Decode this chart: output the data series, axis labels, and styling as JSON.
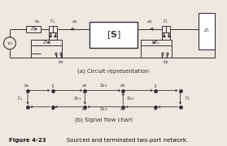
{
  "fig_width": 2.79,
  "fig_height": 1.8,
  "dpi": 100,
  "bg_color": "#ede8e0",
  "line_color": "#333333",
  "caption_regular": "   Sourced and terminated two-port network.",
  "caption_bold": "Figure 4-23",
  "sub_a_label": "(a) Circuit representation",
  "sub_b_label": "(b) Signal flow chart",
  "fs_tiny": 4.5,
  "fs_small": 5.0,
  "fs_med": 6.0
}
